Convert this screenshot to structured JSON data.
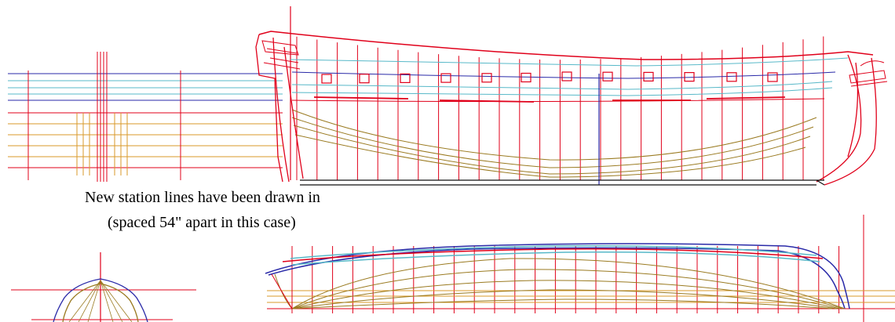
{
  "annotation": {
    "line1": "New station lines have been drawn in",
    "line2": "(spaced 54\" apart in this case)"
  },
  "colors": {
    "station_line": "#e0001a",
    "waterline": "#d99a2a",
    "sheer_line": "#2a2aa8",
    "cyan_line": "#57b8c8",
    "buttock": "#9a7a20",
    "keel": "#111111",
    "background": "#ffffff"
  },
  "icons": {
    "drawing": "ship-lines-plan"
  }
}
